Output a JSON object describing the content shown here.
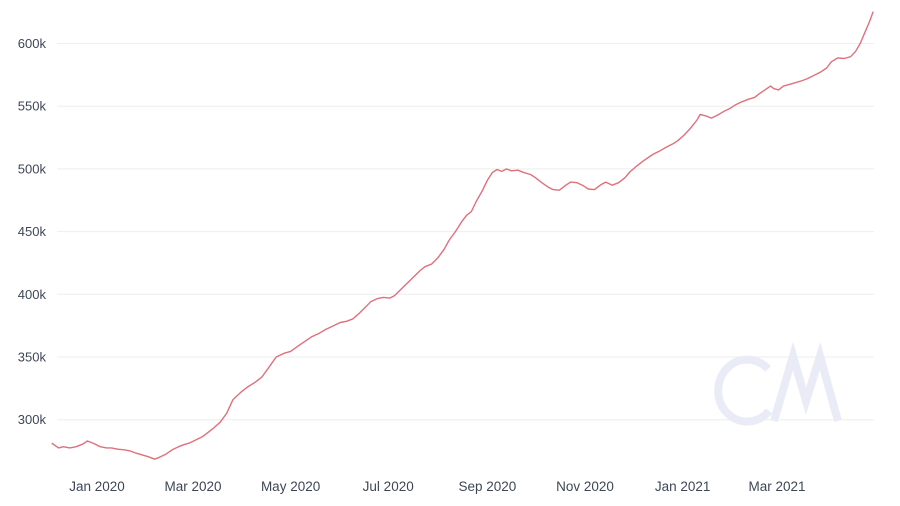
{
  "colors": {
    "background": "#ffffff",
    "line": "#df707c",
    "grid": "#eeeeee",
    "axis_text": "#3e4756",
    "watermark": "#e9ecf6"
  },
  "watermark_text": "CM",
  "chart_data": {
    "type": "line",
    "title": "",
    "xlabel": "",
    "ylabel": "",
    "unit": "k",
    "grid": "horizontal-only",
    "legend": "none",
    "y_axis": {
      "tick_values": [
        300,
        350,
        400,
        450,
        500,
        550,
        600
      ],
      "tick_labels": [
        "300k",
        "350k",
        "400k",
        "450k",
        "500k",
        "550k",
        "600k"
      ],
      "range_k": [
        262,
        632
      ]
    },
    "x_axis": {
      "tick_dates": [
        "2020-01-01",
        "2020-03-01",
        "2020-05-01",
        "2020-07-01",
        "2020-09-01",
        "2020-11-01",
        "2021-01-01",
        "2021-03-01"
      ],
      "tick_labels": [
        "Jan 2020",
        "Mar 2020",
        "May 2020",
        "Jul 2020",
        "Sep 2020",
        "Nov 2020",
        "Jan 2021",
        "Mar 2021"
      ],
      "range": [
        "2019-12-04",
        "2021-04-30"
      ]
    },
    "series": [
      {
        "name": "value",
        "color": "#df707c",
        "points": [
          [
            "2019-12-04",
            281
          ],
          [
            "2019-12-08",
            277.5
          ],
          [
            "2019-12-11",
            278.5
          ],
          [
            "2019-12-15",
            277.5
          ],
          [
            "2019-12-19",
            278.5
          ],
          [
            "2019-12-23",
            280.5
          ],
          [
            "2019-12-26",
            283
          ],
          [
            "2019-12-30",
            281
          ],
          [
            "2020-01-03",
            278.5
          ],
          [
            "2020-01-07",
            277.5
          ],
          [
            "2020-01-10",
            277.5
          ],
          [
            "2020-01-14",
            276.5
          ],
          [
            "2020-01-18",
            276
          ],
          [
            "2020-01-22",
            275
          ],
          [
            "2020-01-25",
            273.5
          ],
          [
            "2020-01-29",
            272
          ],
          [
            "2020-02-02",
            270.5
          ],
          [
            "2020-02-06",
            268.5
          ],
          [
            "2020-02-09",
            270
          ],
          [
            "2020-02-13",
            272.5
          ],
          [
            "2020-02-17",
            276
          ],
          [
            "2020-02-21",
            278.5
          ],
          [
            "2020-02-24",
            280
          ],
          [
            "2020-02-28",
            281.5
          ],
          [
            "2020-03-03",
            284
          ],
          [
            "2020-03-07",
            286.5
          ],
          [
            "2020-03-10",
            289.5
          ],
          [
            "2020-03-14",
            293.5
          ],
          [
            "2020-03-18",
            298
          ],
          [
            "2020-03-22",
            305
          ],
          [
            "2020-03-26",
            316
          ],
          [
            "2020-03-31",
            322
          ],
          [
            "2020-04-04",
            326
          ],
          [
            "2020-04-09",
            330
          ],
          [
            "2020-04-13",
            334
          ],
          [
            "2020-04-17",
            341
          ],
          [
            "2020-04-22",
            350
          ],
          [
            "2020-04-27",
            353
          ],
          [
            "2020-05-01",
            354.5
          ],
          [
            "2020-05-06",
            359
          ],
          [
            "2020-05-10",
            362.5
          ],
          [
            "2020-05-14",
            366
          ],
          [
            "2020-05-19",
            369
          ],
          [
            "2020-05-23",
            372
          ],
          [
            "2020-05-28",
            375
          ],
          [
            "2020-06-01",
            377.5
          ],
          [
            "2020-06-05",
            378.5
          ],
          [
            "2020-06-09",
            380.5
          ],
          [
            "2020-06-13",
            385
          ],
          [
            "2020-06-17",
            390
          ],
          [
            "2020-06-20",
            394
          ],
          [
            "2020-06-24",
            396.5
          ],
          [
            "2020-06-28",
            397.5
          ],
          [
            "2020-07-02",
            397
          ],
          [
            "2020-07-05",
            399
          ],
          [
            "2020-07-09",
            404
          ],
          [
            "2020-07-13",
            409
          ],
          [
            "2020-07-17",
            414
          ],
          [
            "2020-07-21",
            419
          ],
          [
            "2020-07-24",
            422
          ],
          [
            "2020-07-28",
            424
          ],
          [
            "2020-08-01",
            429
          ],
          [
            "2020-08-05",
            436
          ],
          [
            "2020-08-08",
            443
          ],
          [
            "2020-08-12",
            450
          ],
          [
            "2020-08-16",
            458
          ],
          [
            "2020-08-19",
            463
          ],
          [
            "2020-08-22",
            466
          ],
          [
            "2020-08-25",
            474
          ],
          [
            "2020-08-29",
            483
          ],
          [
            "2020-09-01",
            491
          ],
          [
            "2020-09-04",
            497
          ],
          [
            "2020-09-07",
            499.5
          ],
          [
            "2020-09-10",
            498
          ],
          [
            "2020-09-13",
            500
          ],
          [
            "2020-09-16",
            498.5
          ],
          [
            "2020-09-20",
            499
          ],
          [
            "2020-09-24",
            497
          ],
          [
            "2020-09-28",
            495.5
          ],
          [
            "2020-10-01",
            493
          ],
          [
            "2020-10-05",
            489
          ],
          [
            "2020-10-09",
            485.5
          ],
          [
            "2020-10-12",
            483.5
          ],
          [
            "2020-10-16",
            483
          ],
          [
            "2020-10-20",
            487
          ],
          [
            "2020-10-23",
            489.5
          ],
          [
            "2020-10-27",
            489
          ],
          [
            "2020-10-31",
            486.5
          ],
          [
            "2020-11-03",
            484
          ],
          [
            "2020-11-07",
            483.5
          ],
          [
            "2020-11-11",
            487.5
          ],
          [
            "2020-11-14",
            489.5
          ],
          [
            "2020-11-18",
            487
          ],
          [
            "2020-11-22",
            489
          ],
          [
            "2020-11-26",
            493
          ],
          [
            "2020-11-29",
            497.5
          ],
          [
            "2020-12-03",
            502
          ],
          [
            "2020-12-07",
            506
          ],
          [
            "2020-12-11",
            509.5
          ],
          [
            "2020-12-14",
            512
          ],
          [
            "2020-12-18",
            514.5
          ],
          [
            "2020-12-22",
            517.5
          ],
          [
            "2020-12-26",
            520
          ],
          [
            "2020-12-29",
            522.5
          ],
          [
            "2021-01-02",
            527
          ],
          [
            "2021-01-06",
            532.5
          ],
          [
            "2021-01-10",
            539
          ],
          [
            "2021-01-12",
            543.5
          ],
          [
            "2021-01-16",
            542
          ],
          [
            "2021-01-19",
            540.5
          ],
          [
            "2021-01-23",
            543
          ],
          [
            "2021-01-27",
            546
          ],
          [
            "2021-01-31",
            548.5
          ],
          [
            "2021-02-03",
            551
          ],
          [
            "2021-02-07",
            553.5
          ],
          [
            "2021-02-11",
            555.5
          ],
          [
            "2021-02-15",
            557
          ],
          [
            "2021-02-18",
            560
          ],
          [
            "2021-02-22",
            563.5
          ],
          [
            "2021-02-25",
            566
          ],
          [
            "2021-02-27",
            564
          ],
          [
            "2021-03-02",
            563
          ],
          [
            "2021-03-05",
            566
          ],
          [
            "2021-03-09",
            567.5
          ],
          [
            "2021-03-13",
            569
          ],
          [
            "2021-03-17",
            570.5
          ],
          [
            "2021-03-20",
            572
          ],
          [
            "2021-03-24",
            574.5
          ],
          [
            "2021-03-28",
            577
          ],
          [
            "2021-04-01",
            580.5
          ],
          [
            "2021-04-04",
            585.5
          ],
          [
            "2021-04-08",
            588.5
          ],
          [
            "2021-04-12",
            588
          ],
          [
            "2021-04-16",
            589.5
          ],
          [
            "2021-04-19",
            593.5
          ],
          [
            "2021-04-22",
            600
          ],
          [
            "2021-04-25",
            609
          ],
          [
            "2021-04-28",
            618
          ],
          [
            "2021-04-30",
            625
          ]
        ]
      }
    ]
  }
}
